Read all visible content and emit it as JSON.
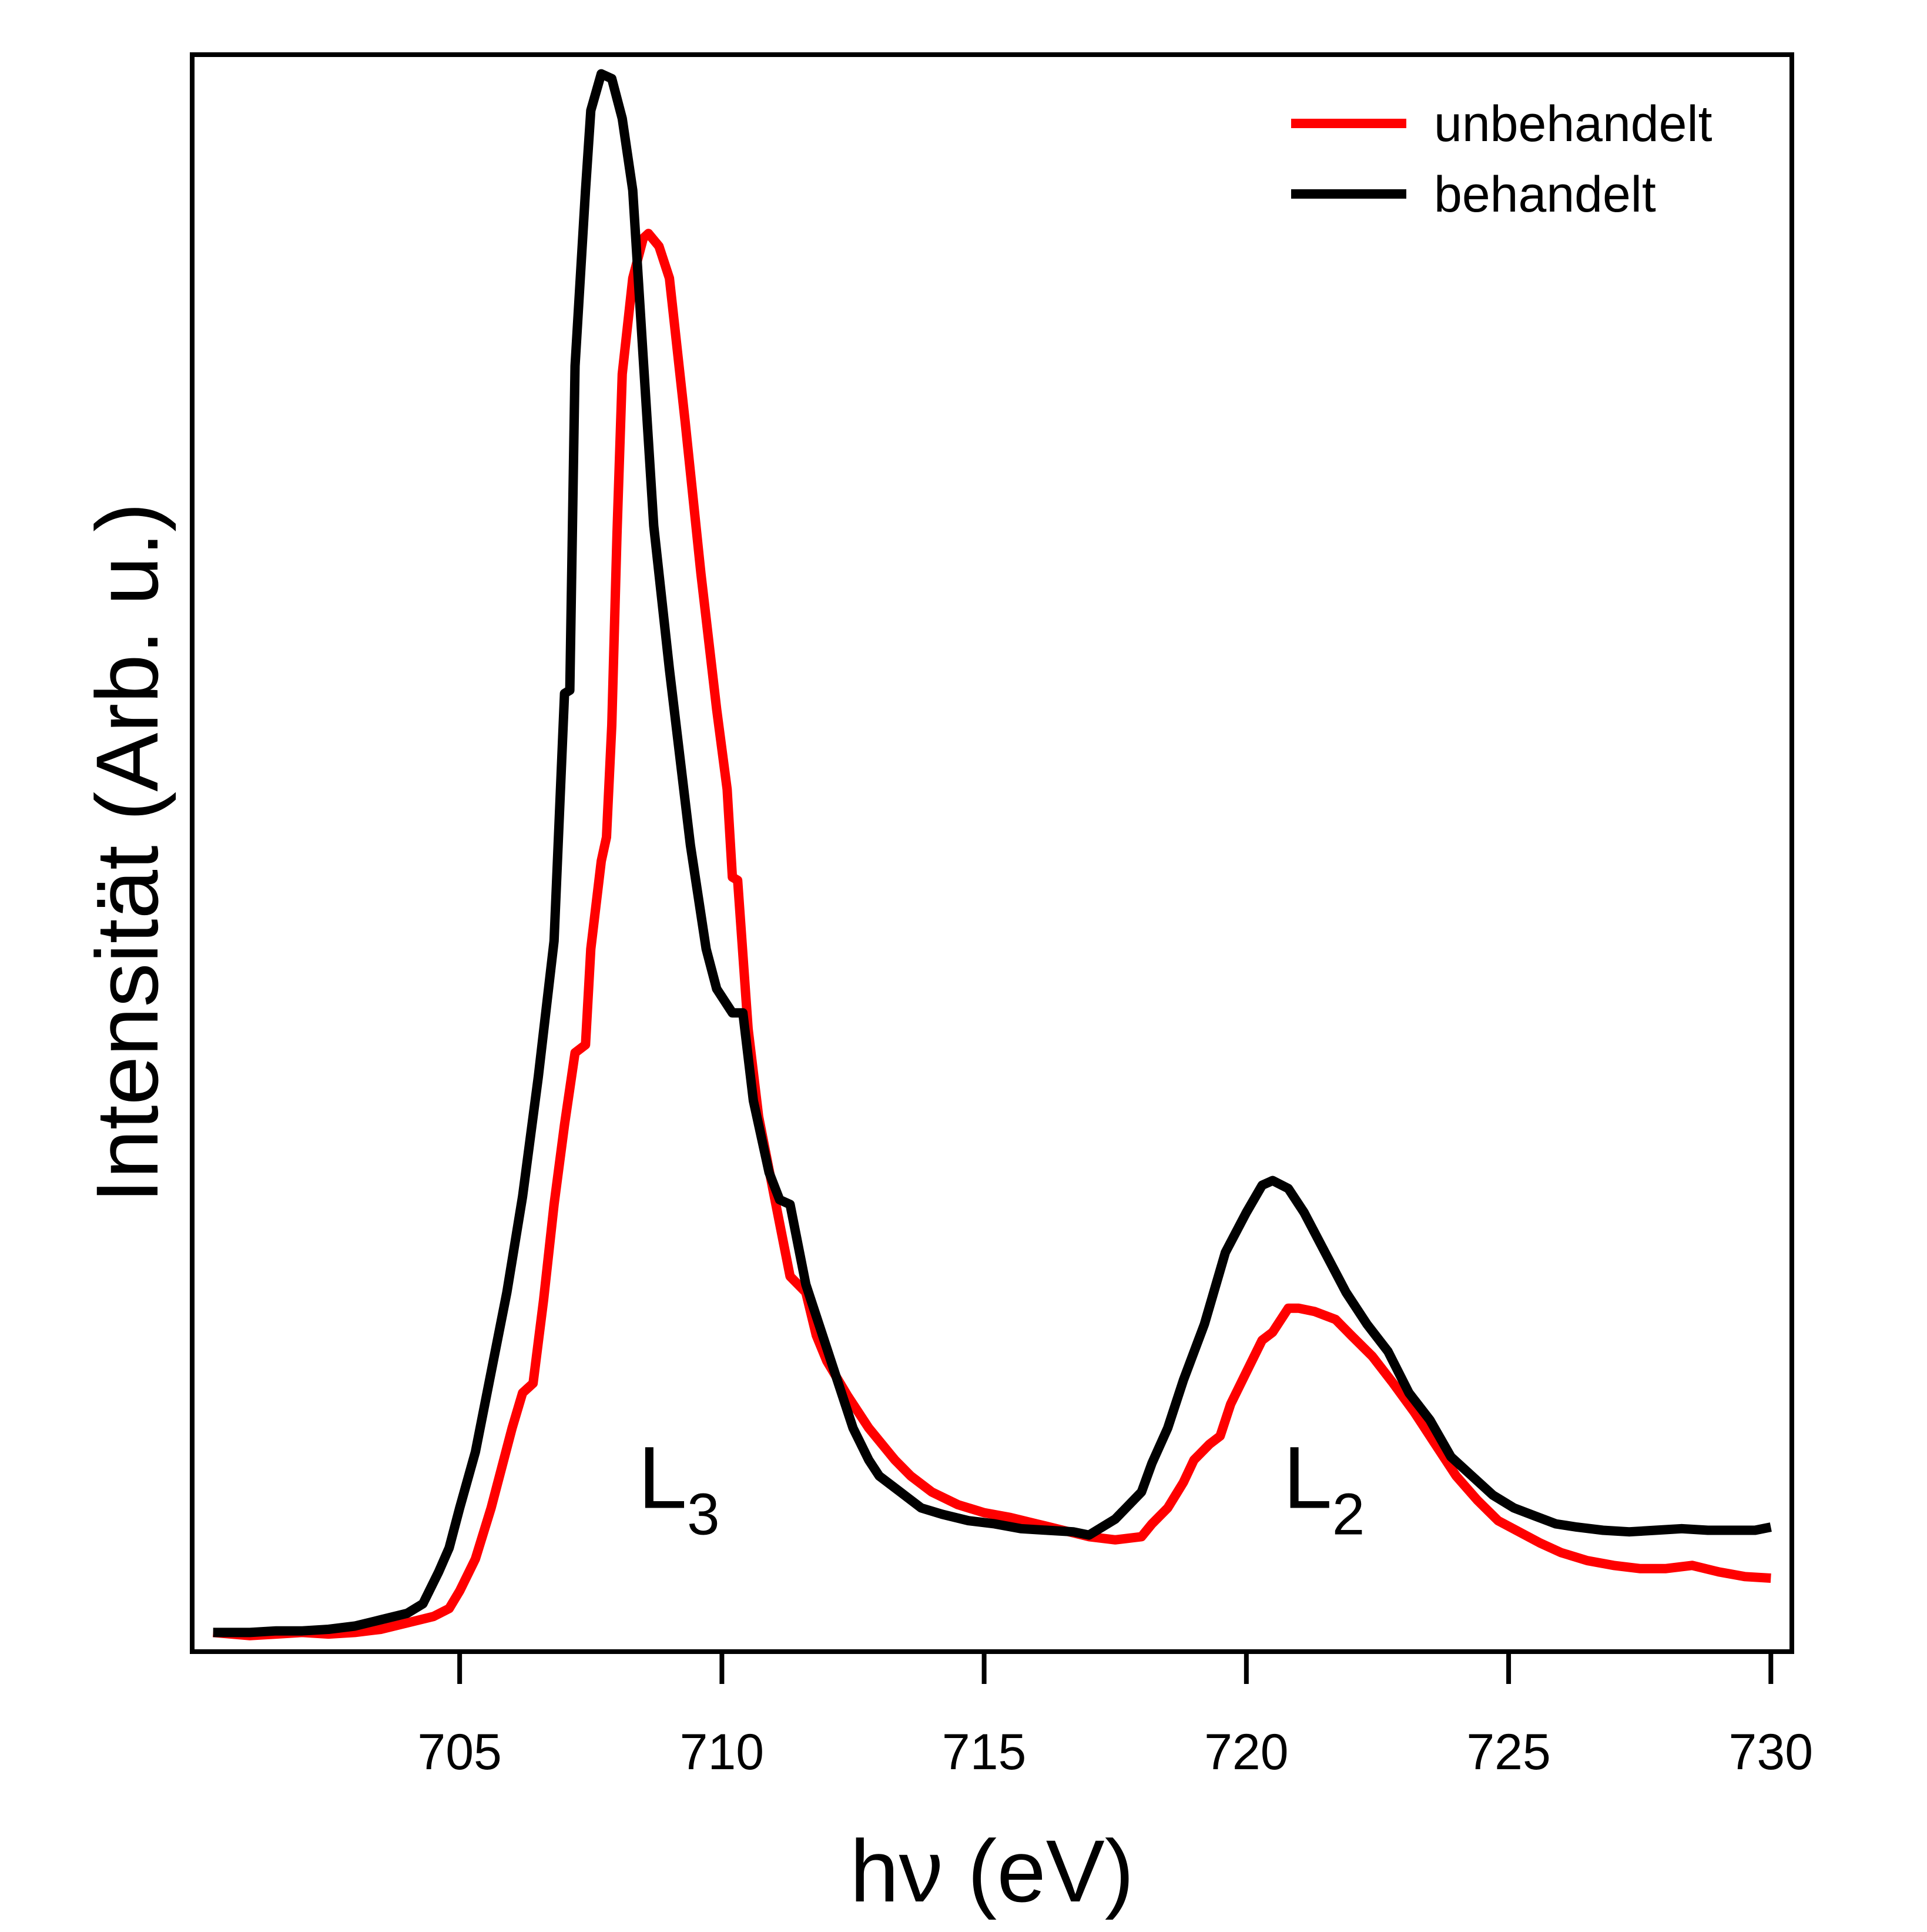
{
  "chart_data": {
    "type": "line",
    "xlabel": "hν (eV)",
    "ylabel": "Intensität (Arb. u.)",
    "xlim": [
      699.9,
      730.4
    ],
    "ylim": [
      0,
      1.0
    ],
    "y_ticks_shown": false,
    "x_ticks": [
      705,
      710,
      715,
      720,
      725,
      730
    ],
    "x_tick_labels": [
      "705",
      "710",
      "715",
      "720",
      "725",
      "730"
    ],
    "legend": {
      "position": "top-right"
    },
    "annotations": [
      {
        "id": "l3",
        "text": "L",
        "sub": "3",
        "x": 708.4,
        "y": 0.09
      },
      {
        "id": "l2",
        "text": "L",
        "sub": "2",
        "x": 720.7,
        "y": 0.09
      }
    ],
    "series": [
      {
        "name": "unbehandelt",
        "color": "#ff0000",
        "points": [
          [
            700.3,
            0.012
          ],
          [
            701.0,
            0.01
          ],
          [
            701.5,
            0.011
          ],
          [
            702.0,
            0.012
          ],
          [
            702.5,
            0.011
          ],
          [
            703.0,
            0.012
          ],
          [
            703.5,
            0.014
          ],
          [
            704.0,
            0.018
          ],
          [
            704.5,
            0.022
          ],
          [
            704.8,
            0.027
          ],
          [
            705.0,
            0.038
          ],
          [
            705.3,
            0.058
          ],
          [
            705.6,
            0.09
          ],
          [
            706.0,
            0.14
          ],
          [
            706.2,
            0.162
          ],
          [
            706.4,
            0.168
          ],
          [
            706.6,
            0.22
          ],
          [
            706.8,
            0.28
          ],
          [
            707.0,
            0.33
          ],
          [
            707.2,
            0.375
          ],
          [
            707.4,
            0.38
          ],
          [
            707.5,
            0.44
          ],
          [
            707.7,
            0.495
          ],
          [
            707.8,
            0.51
          ],
          [
            707.9,
            0.58
          ],
          [
            708.0,
            0.7
          ],
          [
            708.1,
            0.8
          ],
          [
            708.3,
            0.86
          ],
          [
            708.5,
            0.885
          ],
          [
            708.6,
            0.888
          ],
          [
            708.8,
            0.88
          ],
          [
            709.0,
            0.86
          ],
          [
            709.3,
            0.77
          ],
          [
            709.6,
            0.675
          ],
          [
            709.9,
            0.59
          ],
          [
            710.1,
            0.54
          ],
          [
            710.2,
            0.485
          ],
          [
            710.3,
            0.483
          ],
          [
            710.5,
            0.39
          ],
          [
            710.7,
            0.335
          ],
          [
            711.0,
            0.285
          ],
          [
            711.3,
            0.235
          ],
          [
            711.6,
            0.225
          ],
          [
            711.8,
            0.198
          ],
          [
            712.0,
            0.182
          ],
          [
            712.4,
            0.16
          ],
          [
            712.8,
            0.14
          ],
          [
            713.3,
            0.12
          ],
          [
            713.6,
            0.11
          ],
          [
            714.0,
            0.1
          ],
          [
            714.5,
            0.092
          ],
          [
            715.0,
            0.087
          ],
          [
            715.5,
            0.084
          ],
          [
            716.0,
            0.08
          ],
          [
            716.5,
            0.076
          ],
          [
            717.0,
            0.072
          ],
          [
            717.5,
            0.07
          ],
          [
            718.0,
            0.072
          ],
          [
            718.2,
            0.08
          ],
          [
            718.5,
            0.09
          ],
          [
            718.8,
            0.106
          ],
          [
            719.0,
            0.12
          ],
          [
            719.3,
            0.13
          ],
          [
            719.5,
            0.135
          ],
          [
            719.7,
            0.155
          ],
          [
            720.0,
            0.175
          ],
          [
            720.3,
            0.195
          ],
          [
            720.5,
            0.2
          ],
          [
            720.8,
            0.215
          ],
          [
            721.0,
            0.215
          ],
          [
            721.3,
            0.213
          ],
          [
            721.7,
            0.208
          ],
          [
            722.0,
            0.198
          ],
          [
            722.4,
            0.185
          ],
          [
            722.8,
            0.168
          ],
          [
            723.2,
            0.15
          ],
          [
            723.6,
            0.13
          ],
          [
            724.0,
            0.11
          ],
          [
            724.4,
            0.095
          ],
          [
            724.8,
            0.082
          ],
          [
            725.2,
            0.075
          ],
          [
            725.6,
            0.068
          ],
          [
            726.0,
            0.062
          ],
          [
            726.5,
            0.057
          ],
          [
            727.0,
            0.054
          ],
          [
            727.5,
            0.052
          ],
          [
            728.0,
            0.052
          ],
          [
            728.5,
            0.054
          ],
          [
            729.0,
            0.05
          ],
          [
            729.5,
            0.047
          ],
          [
            730.0,
            0.046
          ]
        ]
      },
      {
        "name": "behandelt",
        "color": "#000000",
        "points": [
          [
            700.3,
            0.012
          ],
          [
            701.0,
            0.012
          ],
          [
            701.5,
            0.013
          ],
          [
            702.0,
            0.013
          ],
          [
            702.5,
            0.014
          ],
          [
            703.0,
            0.016
          ],
          [
            703.5,
            0.02
          ],
          [
            704.0,
            0.024
          ],
          [
            704.3,
            0.03
          ],
          [
            704.6,
            0.05
          ],
          [
            704.8,
            0.065
          ],
          [
            705.0,
            0.09
          ],
          [
            705.3,
            0.125
          ],
          [
            705.6,
            0.175
          ],
          [
            705.9,
            0.225
          ],
          [
            706.2,
            0.285
          ],
          [
            706.5,
            0.36
          ],
          [
            706.8,
            0.445
          ],
          [
            707.0,
            0.6
          ],
          [
            707.1,
            0.602
          ],
          [
            707.2,
            0.805
          ],
          [
            707.4,
            0.915
          ],
          [
            707.5,
            0.965
          ],
          [
            707.7,
            0.988
          ],
          [
            707.9,
            0.985
          ],
          [
            708.1,
            0.96
          ],
          [
            708.3,
            0.915
          ],
          [
            708.5,
            0.81
          ],
          [
            708.7,
            0.705
          ],
          [
            709.0,
            0.615
          ],
          [
            709.4,
            0.505
          ],
          [
            709.7,
            0.44
          ],
          [
            709.9,
            0.415
          ],
          [
            710.2,
            0.4
          ],
          [
            710.4,
            0.4
          ],
          [
            710.6,
            0.345
          ],
          [
            710.9,
            0.3
          ],
          [
            711.1,
            0.283
          ],
          [
            711.3,
            0.28
          ],
          [
            711.6,
            0.23
          ],
          [
            711.9,
            0.2
          ],
          [
            712.2,
            0.17
          ],
          [
            712.5,
            0.14
          ],
          [
            712.8,
            0.12
          ],
          [
            713.0,
            0.11
          ],
          [
            713.4,
            0.1
          ],
          [
            713.8,
            0.09
          ],
          [
            714.2,
            0.086
          ],
          [
            714.7,
            0.082
          ],
          [
            715.2,
            0.08
          ],
          [
            715.7,
            0.077
          ],
          [
            716.2,
            0.076
          ],
          [
            716.7,
            0.075
          ],
          [
            717.0,
            0.073
          ],
          [
            717.5,
            0.083
          ],
          [
            718.0,
            0.1
          ],
          [
            718.2,
            0.118
          ],
          [
            718.5,
            0.14
          ],
          [
            718.8,
            0.17
          ],
          [
            719.2,
            0.205
          ],
          [
            719.6,
            0.25
          ],
          [
            720.0,
            0.275
          ],
          [
            720.3,
            0.292
          ],
          [
            720.5,
            0.295
          ],
          [
            720.8,
            0.29
          ],
          [
            721.1,
            0.275
          ],
          [
            721.5,
            0.25
          ],
          [
            721.9,
            0.225
          ],
          [
            722.3,
            0.205
          ],
          [
            722.7,
            0.188
          ],
          [
            723.1,
            0.162
          ],
          [
            723.5,
            0.145
          ],
          [
            723.9,
            0.122
          ],
          [
            724.3,
            0.11
          ],
          [
            724.7,
            0.098
          ],
          [
            725.1,
            0.09
          ],
          [
            725.5,
            0.085
          ],
          [
            725.9,
            0.08
          ],
          [
            726.3,
            0.078
          ],
          [
            726.8,
            0.076
          ],
          [
            727.3,
            0.075
          ],
          [
            727.8,
            0.076
          ],
          [
            728.3,
            0.077
          ],
          [
            728.8,
            0.076
          ],
          [
            729.3,
            0.076
          ],
          [
            729.7,
            0.076
          ],
          [
            730.0,
            0.078
          ]
        ]
      }
    ]
  }
}
